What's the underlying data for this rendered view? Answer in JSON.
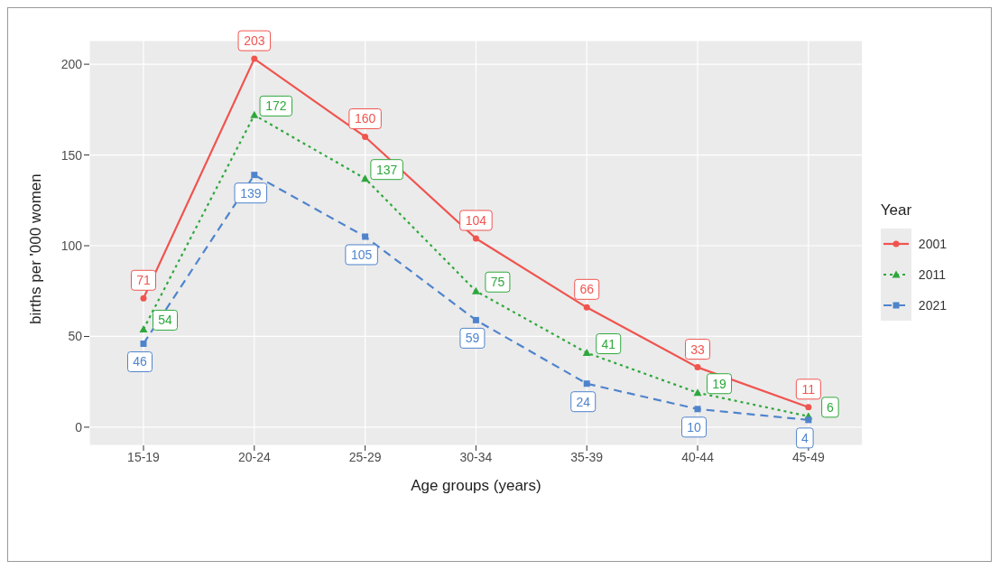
{
  "chart_data": {
    "type": "line",
    "xlabel": "Age groups (years)",
    "ylabel": "births per '000 women",
    "legend_title": "Year",
    "categories": [
      "15-19",
      "20-24",
      "25-29",
      "30-34",
      "35-39",
      "40-44",
      "45-49"
    ],
    "series": [
      {
        "name": "2001",
        "color": "#f0544f",
        "marker": "circle",
        "line_style": "solid",
        "values": [
          71,
          203,
          160,
          104,
          66,
          33,
          11
        ]
      },
      {
        "name": "2011",
        "color": "#2ea83c",
        "marker": "triangle",
        "line_style": "dotted",
        "values": [
          54,
          172,
          137,
          75,
          41,
          19,
          6
        ]
      },
      {
        "name": "2021",
        "color": "#4f84cc",
        "marker": "square",
        "line_style": "dashed",
        "values": [
          46,
          139,
          105,
          59,
          24,
          10,
          4
        ]
      }
    ],
    "ylim": [
      -10,
      213
    ],
    "yticks": [
      0,
      50,
      100,
      150,
      200
    ],
    "grid": true,
    "legend": "right",
    "data_labels": true
  }
}
